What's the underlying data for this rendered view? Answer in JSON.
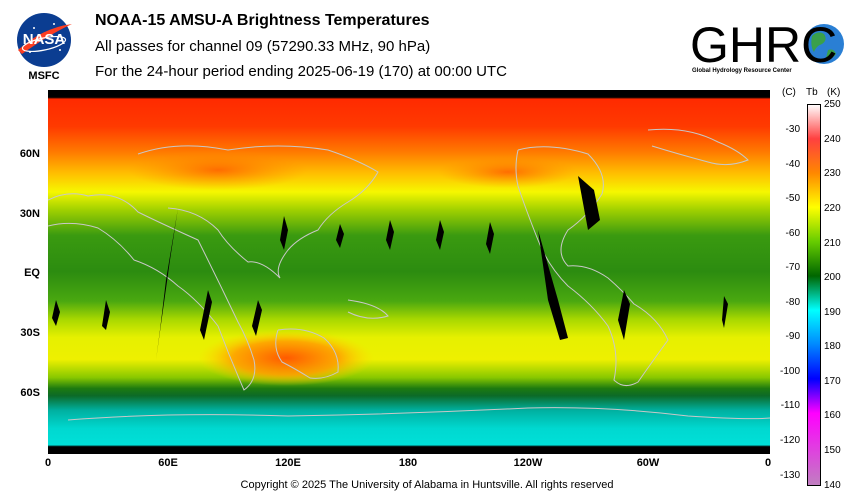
{
  "header": {
    "title": "NOAA-15 AMSU-A Brightness Temperatures",
    "subtitle1": "All passes for channel 09 (57290.33 MHz, 90 hPa)",
    "subtitle2": "For the 24-hour period ending 2025-06-19 (170) at 00:00 UTC"
  },
  "logos": {
    "nasa": "NASA",
    "msfc": "MSFC",
    "ghrc": "GHRC",
    "ghrc_subtitle": "Global Hydrology Resource Center"
  },
  "map": {
    "lat_labels": [
      "60N",
      "30N",
      "EQ",
      "30S",
      "60S"
    ],
    "lon_labels": [
      "0",
      "60E",
      "120E",
      "180",
      "120W",
      "60W",
      "0"
    ]
  },
  "colorbar": {
    "header_c": "(C)",
    "header_tb": "Tb",
    "header_k": "(K)",
    "celsius_labels": [
      "-30",
      "-40",
      "-50",
      "-60",
      "-70",
      "-80",
      "-90",
      "-100",
      "-110",
      "-120",
      "-130"
    ],
    "kelvin_labels": [
      "250",
      "240",
      "230",
      "220",
      "210",
      "200",
      "190",
      "180",
      "170",
      "160",
      "150",
      "140"
    ],
    "colors": [
      "#ffffff",
      "#ff1a1a",
      "#ff8800",
      "#ffff00",
      "#66cc00",
      "#006600",
      "#00ffff",
      "#0000ff",
      "#ff00ff",
      "#c080c0"
    ]
  },
  "footer": {
    "copyright": "Copyright © 2025 The University of Alabama in Huntsville.  All rights reserved"
  }
}
